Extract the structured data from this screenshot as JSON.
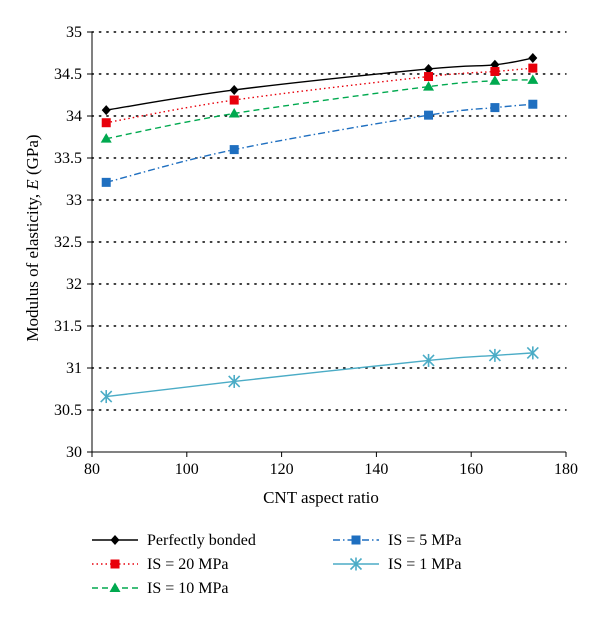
{
  "chart_data": {
    "type": "line",
    "title": "",
    "xlabel": "CNT aspect ratio",
    "ylabel_prefix": "Modulus of elasticity, ",
    "ylabel_var": "E",
    "ylabel_suffix": " (GPa)",
    "xlim": [
      80,
      180
    ],
    "ylim": [
      30,
      35
    ],
    "x_ticks": [
      80,
      100,
      120,
      140,
      160,
      180
    ],
    "y_ticks": [
      30,
      30.5,
      31,
      31.5,
      32,
      32.5,
      33,
      33.5,
      34,
      34.5,
      35
    ],
    "grid": "horizontal dotted",
    "legend_position": "bottom",
    "series": [
      {
        "name": "Perfectly bonded",
        "color": "#000000",
        "marker": "diamond",
        "dash": "solid",
        "x": [
          83,
          110,
          151,
          165,
          173
        ],
        "y": [
          34.07,
          34.31,
          34.56,
          34.61,
          34.69
        ]
      },
      {
        "name": "IS = 20 MPa",
        "color": "#e8000b",
        "marker": "square",
        "dash": "dotted",
        "x": [
          83,
          110,
          151,
          165,
          173
        ],
        "y": [
          33.92,
          34.19,
          34.47,
          34.53,
          34.57
        ]
      },
      {
        "name": "IS = 10 MPa",
        "color": "#00a94f",
        "marker": "triangle",
        "dash": "dashed",
        "x": [
          83,
          110,
          151,
          165,
          173
        ],
        "y": [
          33.73,
          34.03,
          34.35,
          34.42,
          34.43
        ]
      },
      {
        "name": "IS = 5 MPa",
        "color": "#1f6fc0",
        "marker": "square",
        "dash": "dashdot",
        "x": [
          83,
          110,
          151,
          165,
          173
        ],
        "y": [
          33.21,
          33.6,
          34.01,
          34.1,
          34.14
        ]
      },
      {
        "name": "IS = 1 MPa",
        "color": "#4bacc6",
        "marker": "asterisk",
        "dash": "solid",
        "x": [
          83,
          110,
          151,
          165,
          173
        ],
        "y": [
          30.66,
          30.84,
          31.09,
          31.15,
          31.18
        ]
      }
    ]
  }
}
